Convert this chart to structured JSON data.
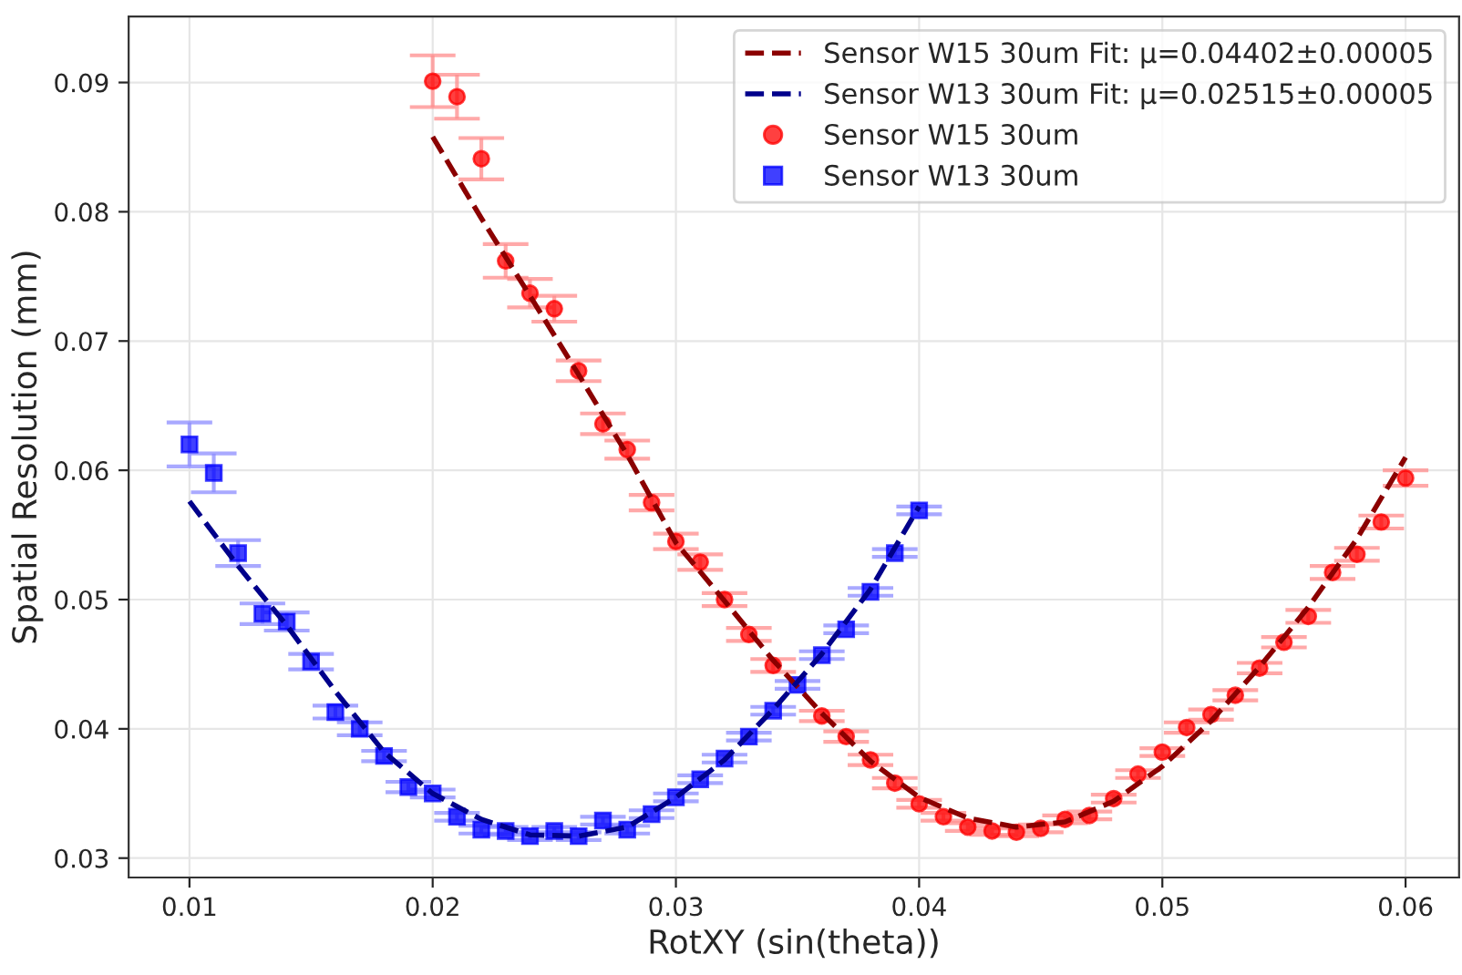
{
  "chart_data": {
    "type": "scatter",
    "xlabel": "RotXY (sin(theta))",
    "ylabel": "Spatial Resolution (mm)",
    "xlim": [
      0.0075,
      0.0622
    ],
    "ylim": [
      0.0285,
      0.0951
    ],
    "xticks": [
      0.01,
      0.02,
      0.03,
      0.04,
      0.05,
      0.06
    ],
    "yticks": [
      0.03,
      0.04,
      0.05,
      0.06,
      0.07,
      0.08,
      0.09
    ],
    "grid": true,
    "legend": "top right",
    "series": [
      {
        "name": "Sensor W15 30um Fit: μ=0.04402±0.00005",
        "type": "line",
        "line_style": "dashed",
        "marker": "none",
        "color": "#8b0000",
        "x": [
          0.02,
          0.022,
          0.024,
          0.026,
          0.028,
          0.03,
          0.032,
          0.034,
          0.036,
          0.038,
          0.04,
          0.042,
          0.044,
          0.046,
          0.048,
          0.05,
          0.052,
          0.054,
          0.056,
          0.058,
          0.06
        ],
        "values": [
          0.0858,
          0.0795,
          0.0735,
          0.0674,
          0.0612,
          0.0544,
          0.0499,
          0.0453,
          0.0412,
          0.0375,
          0.0347,
          0.0331,
          0.0324,
          0.0328,
          0.0344,
          0.0371,
          0.0406,
          0.0448,
          0.0494,
          0.0547,
          0.061
        ]
      },
      {
        "name": "Sensor W13 30um Fit: μ=0.02515±0.00005",
        "type": "line",
        "line_style": "dashed",
        "marker": "none",
        "color": "#00008b",
        "x": [
          0.01,
          0.012,
          0.014,
          0.016,
          0.018,
          0.02,
          0.022,
          0.024,
          0.026,
          0.028,
          0.03,
          0.032,
          0.034,
          0.036,
          0.038,
          0.04
        ],
        "values": [
          0.0576,
          0.0526,
          0.048,
          0.0429,
          0.0382,
          0.035,
          0.033,
          0.0318,
          0.0317,
          0.0324,
          0.0347,
          0.0376,
          0.0415,
          0.0458,
          0.0508,
          0.0572
        ]
      },
      {
        "name": "Sensor W15 30um",
        "marker": "circle",
        "color": "#ff0000",
        "x": [
          0.02,
          0.021,
          0.022,
          0.023,
          0.024,
          0.025,
          0.026,
          0.027,
          0.028,
          0.029,
          0.03,
          0.031,
          0.032,
          0.033,
          0.034,
          0.035,
          0.036,
          0.037,
          0.038,
          0.039,
          0.04,
          0.041,
          0.042,
          0.043,
          0.044,
          0.045,
          0.046,
          0.047,
          0.048,
          0.049,
          0.05,
          0.051,
          0.052,
          0.053,
          0.054,
          0.055,
          0.056,
          0.057,
          0.058,
          0.059,
          0.06
        ],
        "values": [
          0.0901,
          0.0889,
          0.0841,
          0.0762,
          0.0737,
          0.0725,
          0.0677,
          0.0636,
          0.0616,
          0.0575,
          0.0545,
          0.0529,
          0.05,
          0.0473,
          0.0449,
          null,
          0.041,
          0.0394,
          0.0376,
          0.0358,
          0.0342,
          0.0332,
          0.0324,
          0.0321,
          0.032,
          0.0323,
          0.033,
          0.0333,
          0.0346,
          0.0365,
          0.0382,
          0.0401,
          0.0411,
          0.0426,
          0.0447,
          0.0467,
          0.0487,
          0.0521,
          0.0535,
          0.056,
          0.0594
        ],
        "errors": [
          0.002,
          0.0017,
          0.0016,
          0.0013,
          0.0011,
          0.001,
          0.0008,
          0.0008,
          0.0007,
          0.0006,
          0.0006,
          0.0006,
          0.0005,
          0.0005,
          0.0005,
          null,
          0.0004,
          0.0004,
          0.0004,
          0.0004,
          0.0003,
          0.0003,
          0.0003,
          0.0003,
          0.0003,
          0.0003,
          0.0003,
          0.0003,
          0.0003,
          0.0003,
          0.0003,
          0.0004,
          0.0004,
          0.0004,
          0.0004,
          0.0004,
          0.0005,
          0.0005,
          0.0005,
          0.0005,
          0.0006
        ]
      },
      {
        "name": "Sensor W13 30um",
        "marker": "square",
        "color": "#0000ff",
        "x": [
          0.01,
          0.011,
          0.012,
          0.013,
          0.014,
          0.015,
          0.016,
          0.017,
          0.018,
          0.019,
          0.02,
          0.021,
          0.022,
          0.023,
          0.024,
          0.025,
          0.026,
          0.027,
          0.028,
          0.029,
          0.03,
          0.031,
          0.032,
          0.033,
          0.034,
          0.035,
          0.036,
          0.037,
          0.038,
          0.039,
          0.04
        ],
        "values": [
          0.062,
          0.0598,
          0.0536,
          0.0489,
          0.0483,
          0.0452,
          0.0413,
          0.04,
          0.0379,
          0.0355,
          0.035,
          0.0332,
          0.0322,
          0.0321,
          0.0317,
          0.0321,
          0.0317,
          0.0329,
          0.0322,
          0.0334,
          0.0347,
          0.0361,
          0.0377,
          0.0394,
          0.0414,
          0.0434,
          0.0457,
          0.0477,
          0.0506,
          0.0536,
          0.0569
        ],
        "errors": [
          0.0017,
          0.0015,
          0.001,
          0.0008,
          0.0007,
          0.0006,
          0.0005,
          0.0005,
          0.0004,
          0.0004,
          0.0003,
          0.0003,
          0.0003,
          0.0003,
          0.0003,
          0.0003,
          0.0003,
          0.0003,
          0.0003,
          0.0003,
          0.0003,
          0.0003,
          0.0003,
          0.0003,
          0.0003,
          0.0003,
          0.0003,
          0.0003,
          0.0003,
          0.0003,
          0.0003
        ]
      }
    ]
  }
}
